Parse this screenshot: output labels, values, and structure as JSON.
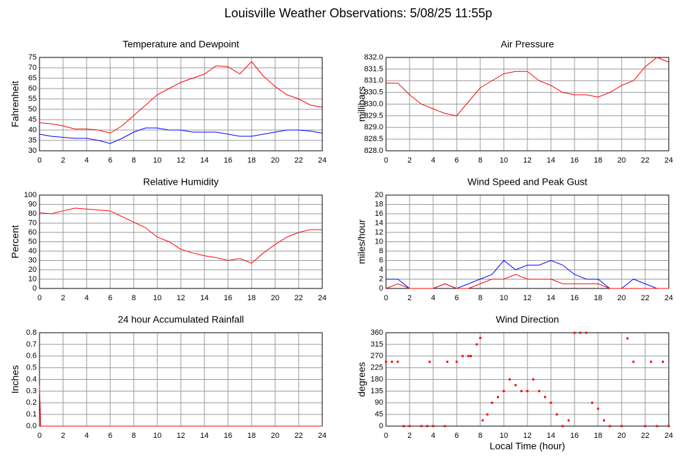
{
  "title": "Louisville Weather Observations: 5/08/25 11:55p",
  "chart_data": [
    {
      "type": "line",
      "title": "Temperature and Dewpoint",
      "ylabel": "Fahrenheit",
      "x": [
        0,
        1,
        2,
        3,
        4,
        5,
        6,
        7,
        8,
        9,
        10,
        11,
        12,
        13,
        14,
        15,
        16,
        17,
        18,
        19,
        20,
        21,
        22,
        23,
        24
      ],
      "series": [
        {
          "color": "#ff0000",
          "values": [
            43.5,
            43,
            42,
            40.5,
            40.5,
            40,
            38.5,
            42,
            47,
            52,
            57,
            60,
            63,
            65,
            67,
            71,
            70.5,
            67,
            73,
            66,
            61,
            57,
            55,
            52,
            51
          ]
        },
        {
          "color": "#0000ff",
          "values": [
            38,
            37,
            36.5,
            36,
            36,
            35,
            33.5,
            36,
            39,
            41,
            41,
            40,
            40,
            39,
            39,
            39,
            38,
            37,
            37,
            38,
            39,
            40,
            40,
            39.5,
            38.5
          ]
        }
      ],
      "xlim": [
        0,
        24
      ],
      "xticks": [
        0,
        2,
        4,
        6,
        8,
        10,
        12,
        14,
        16,
        18,
        20,
        22,
        24
      ],
      "ylim": [
        30,
        75
      ],
      "yticks": [
        30,
        35,
        40,
        45,
        50,
        55,
        60,
        65,
        70,
        75
      ],
      "grid": true
    },
    {
      "type": "line",
      "title": "Air Pressure",
      "ylabel": "millibars",
      "x": [
        0,
        1,
        2,
        3,
        4,
        5,
        6,
        7,
        8,
        9,
        10,
        11,
        12,
        13,
        14,
        15,
        16,
        17,
        18,
        19,
        20,
        21,
        22,
        23,
        24
      ],
      "series": [
        {
          "color": "#ff0000",
          "values": [
            830.9,
            830.9,
            830.4,
            830.0,
            829.8,
            829.6,
            829.5,
            830.1,
            830.7,
            831.0,
            831.3,
            831.4,
            831.4,
            831.0,
            830.8,
            830.5,
            830.4,
            830.4,
            830.3,
            830.5,
            830.8,
            831.0,
            831.6,
            832.0,
            831.8
          ]
        }
      ],
      "xlim": [
        0,
        24
      ],
      "xticks": [
        0,
        2,
        4,
        6,
        8,
        10,
        12,
        14,
        16,
        18,
        20,
        22,
        24
      ],
      "ylim": [
        828,
        832
      ],
      "yticks": [
        {
          "value": 828,
          "label": "828.0"
        },
        828.5,
        {
          "value": 829,
          "label": "829.0"
        },
        829.5,
        {
          "value": 830,
          "label": "830.0"
        },
        830.5,
        {
          "value": 831,
          "label": "831.0"
        },
        831.5,
        {
          "value": 832,
          "label": "832.0"
        }
      ],
      "grid": true
    },
    {
      "type": "line",
      "title": "Relative Humidity",
      "ylabel": "Percent",
      "x": [
        0,
        1,
        2,
        3,
        4,
        5,
        6,
        7,
        8,
        9,
        10,
        11,
        12,
        13,
        14,
        15,
        16,
        17,
        18,
        19,
        20,
        21,
        22,
        23,
        24
      ],
      "series": [
        {
          "color": "#ff0000",
          "values": [
            81,
            80,
            83,
            86,
            85,
            84,
            83,
            77,
            71,
            65,
            55,
            50,
            42,
            38,
            35,
            33,
            30,
            32,
            27,
            38,
            47,
            55,
            60,
            63,
            63
          ]
        }
      ],
      "xlim": [
        0,
        24
      ],
      "xticks": [
        0,
        2,
        4,
        6,
        8,
        10,
        12,
        14,
        16,
        18,
        20,
        22,
        24
      ],
      "ylim": [
        0,
        100
      ],
      "yticks": [
        0,
        10,
        20,
        30,
        40,
        50,
        60,
        70,
        80,
        90,
        100
      ],
      "grid": true
    },
    {
      "type": "line",
      "title": "Wind Speed and Peak Gust",
      "ylabel": "miles/hour",
      "x": [
        0,
        1,
        2,
        3,
        4,
        5,
        6,
        7,
        8,
        9,
        10,
        11,
        12,
        13,
        14,
        15,
        16,
        17,
        18,
        19,
        20,
        21,
        22,
        23,
        24
      ],
      "series": [
        {
          "color": "#0000ff",
          "values": [
            2,
            2,
            0,
            0,
            0,
            1,
            0,
            1,
            2,
            3,
            6,
            4,
            5,
            5,
            6,
            5,
            3,
            2,
            2,
            0,
            0,
            2,
            1,
            0,
            0
          ]
        },
        {
          "color": "#ff0000",
          "values": [
            0,
            1,
            0,
            0,
            0,
            1,
            0,
            0,
            1,
            2,
            2,
            3,
            2,
            2,
            2,
            1,
            1,
            1,
            1,
            0,
            0,
            0,
            0,
            0,
            0
          ]
        }
      ],
      "xlim": [
        0,
        24
      ],
      "xticks": [
        0,
        2,
        4,
        6,
        8,
        10,
        12,
        14,
        16,
        18,
        20,
        22,
        24
      ],
      "ylim": [
        0,
        20
      ],
      "yticks": [
        0,
        2,
        4,
        6,
        8,
        10,
        12,
        14,
        16,
        18,
        20
      ],
      "grid": true
    },
    {
      "type": "line",
      "title": "24 hour Accumulated Rainfall",
      "ylabel": "Inches",
      "x": [
        0,
        0.1,
        24
      ],
      "series": [
        {
          "color": "#ff0000",
          "values": [
            0.35,
            0,
            0
          ]
        }
      ],
      "xlim": [
        0,
        24
      ],
      "xticks": [
        0,
        2,
        4,
        6,
        8,
        10,
        12,
        14,
        16,
        18,
        20,
        22,
        24
      ],
      "ylim": [
        0,
        0.8
      ],
      "yticks": [
        {
          "value": 0,
          "label": "0.0"
        },
        0.1,
        0.2,
        0.3,
        0.4,
        0.5,
        0.6,
        0.7,
        0.8
      ],
      "grid": true
    },
    {
      "type": "scatter",
      "title": "Wind Direction",
      "ylabel": "degrees",
      "xlabel": "Local Time (hour)",
      "x": [
        0,
        0.5,
        1,
        1.5,
        2,
        3,
        3.5,
        3.7,
        4,
        5,
        5.2,
        6,
        6.5,
        7,
        7.2,
        7.7,
        8,
        8.2,
        8.6,
        9,
        9.5,
        10,
        10.5,
        11,
        11.5,
        12,
        12.5,
        13,
        13.5,
        14,
        14.5,
        15,
        15.5,
        16,
        16.5,
        17,
        17.5,
        18,
        18.5,
        19,
        20,
        20.5,
        21,
        22,
        22.5,
        23,
        23.5,
        24
      ],
      "series": [
        {
          "color": "#ff0000",
          "values": [
            248,
            248,
            248,
            0,
            0,
            0,
            0,
            248,
            0,
            0,
            248,
            248,
            270,
            270,
            270,
            315,
            340,
            22,
            45,
            90,
            112,
            135,
            180,
            158,
            135,
            135,
            180,
            135,
            112,
            90,
            45,
            0,
            22,
            360,
            360,
            360,
            90,
            67,
            22,
            0,
            0,
            338,
            248,
            0,
            248,
            0,
            248,
            0
          ]
        }
      ],
      "xlim": [
        0,
        24
      ],
      "xticks": [
        0,
        2,
        4,
        6,
        8,
        10,
        12,
        14,
        16,
        18,
        20,
        22,
        24
      ],
      "ylim": [
        0,
        360
      ],
      "yticks": [
        0,
        45,
        90,
        135,
        180,
        225,
        270,
        315,
        360
      ],
      "grid": true
    }
  ]
}
